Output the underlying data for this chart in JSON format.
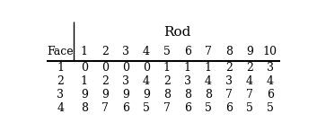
{
  "title": "Rod",
  "col_header_label": "Face",
  "col_headers": [
    "1",
    "2",
    "3",
    "4",
    "5",
    "6",
    "7",
    "8",
    "9",
    "10"
  ],
  "row_headers": [
    "1",
    "2",
    "3",
    "4"
  ],
  "table_data": [
    [
      0,
      0,
      0,
      0,
      1,
      1,
      1,
      2,
      2,
      3
    ],
    [
      1,
      2,
      3,
      4,
      2,
      3,
      4,
      3,
      4,
      4
    ],
    [
      9,
      9,
      9,
      9,
      8,
      8,
      8,
      7,
      7,
      6
    ],
    [
      8,
      7,
      6,
      5,
      7,
      6,
      5,
      6,
      5,
      5
    ]
  ],
  "bg_color": "#ffffff",
  "text_color": "#000000",
  "font_size": 9,
  "title_font_size": 11
}
